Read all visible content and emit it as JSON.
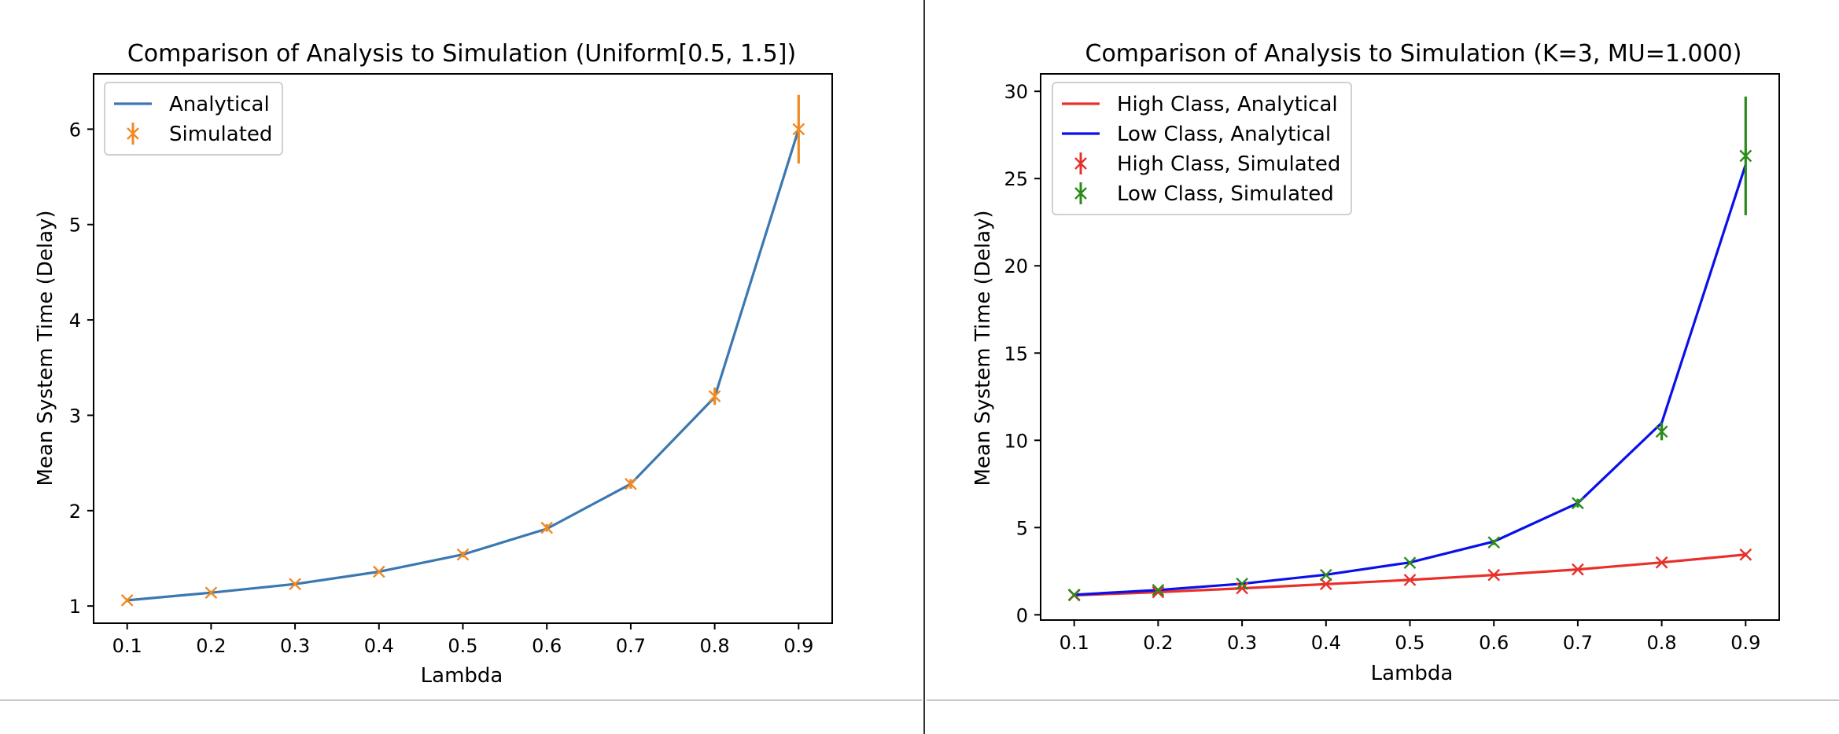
{
  "chart_data": [
    {
      "type": "line",
      "title": "Comparison of Analysis to Simulation (Uniform[0.5, 1.5])",
      "xlabel": "Lambda",
      "ylabel": "Mean System Time (Delay)",
      "x": [
        0.1,
        0.2,
        0.3,
        0.4,
        0.5,
        0.6,
        0.7,
        0.8,
        0.9
      ],
      "xlim": [
        0.06,
        0.94
      ],
      "ylim": [
        0.82,
        6.58
      ],
      "xticks": [
        "0.1",
        "0.2",
        "0.3",
        "0.4",
        "0.5",
        "0.6",
        "0.7",
        "0.8",
        "0.9"
      ],
      "yticks": [
        "1",
        "2",
        "3",
        "4",
        "5",
        "6"
      ],
      "grid": false,
      "legend_position": "upper-left",
      "series": [
        {
          "name": "Analytical",
          "kind": "line",
          "color": "#3a78b2",
          "values": [
            1.06,
            1.14,
            1.23,
            1.36,
            1.54,
            1.81,
            2.28,
            3.19,
            6.0
          ]
        },
        {
          "name": "Simulated",
          "kind": "errorbar",
          "marker": "x",
          "color": "#f08a24",
          "values": [
            1.06,
            1.14,
            1.23,
            1.36,
            1.54,
            1.82,
            2.28,
            3.2,
            6.0
          ],
          "errors": [
            0.02,
            0.02,
            0.02,
            0.02,
            0.03,
            0.04,
            0.05,
            0.09,
            0.36
          ]
        }
      ]
    },
    {
      "type": "line",
      "title": "Comparison of Analysis to Simulation (K=3, MU=1.000)",
      "xlabel": "Lambda",
      "ylabel": "Mean System Time (Delay)",
      "x": [
        0.1,
        0.2,
        0.3,
        0.4,
        0.5,
        0.6,
        0.7,
        0.8,
        0.9
      ],
      "xlim": [
        0.06,
        0.94
      ],
      "ylim": [
        -0.3,
        31.0
      ],
      "xticks": [
        "0.1",
        "0.2",
        "0.3",
        "0.4",
        "0.5",
        "0.6",
        "0.7",
        "0.8",
        "0.9"
      ],
      "yticks": [
        "0",
        "5",
        "10",
        "15",
        "20",
        "25",
        "30"
      ],
      "grid": false,
      "legend_position": "upper-left",
      "series": [
        {
          "name": "High Class, Analytical",
          "kind": "line",
          "color": "#e8302a",
          "values": [
            1.12,
            1.3,
            1.52,
            1.76,
            2.0,
            2.28,
            2.6,
            3.0,
            3.45
          ]
        },
        {
          "name": "Low Class, Analytical",
          "kind": "line",
          "color": "#0a10e8",
          "values": [
            1.15,
            1.42,
            1.78,
            2.3,
            3.0,
            4.2,
            6.4,
            11.0,
            25.8
          ]
        },
        {
          "name": "High Class, Simulated",
          "kind": "errorbar",
          "marker": "x",
          "color": "#e8302a",
          "values": [
            1.12,
            1.3,
            1.52,
            1.76,
            2.0,
            2.28,
            2.6,
            3.0,
            3.45
          ],
          "errors": [
            0.02,
            0.02,
            0.03,
            0.03,
            0.04,
            0.05,
            0.06,
            0.08,
            0.12
          ]
        },
        {
          "name": "Low Class, Simulated",
          "kind": "errorbar",
          "marker": "x",
          "color": "#2a8a1a",
          "values": [
            1.15,
            1.42,
            1.78,
            2.28,
            2.98,
            4.15,
            6.4,
            10.5,
            26.3
          ],
          "errors": [
            0.03,
            0.04,
            0.05,
            0.06,
            0.1,
            0.15,
            0.25,
            0.5,
            3.4
          ]
        }
      ]
    }
  ]
}
